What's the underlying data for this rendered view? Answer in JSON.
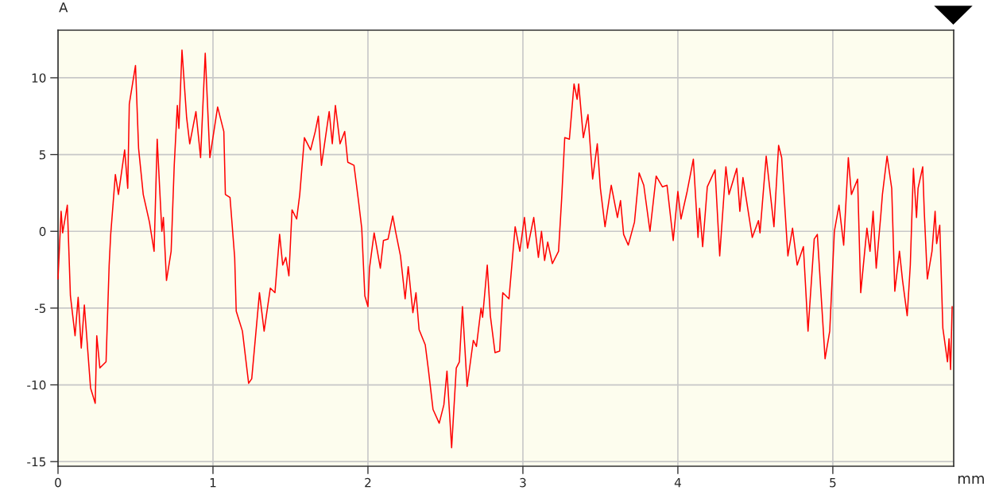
{
  "chart_data": {
    "type": "line",
    "xlabel": "mm",
    "ylabel": "A",
    "x": [
      0.0,
      0.02,
      0.03,
      0.06,
      0.08,
      0.11,
      0.13,
      0.15,
      0.17,
      0.21,
      0.24,
      0.25,
      0.27,
      0.31,
      0.33,
      0.34,
      0.37,
      0.39,
      0.43,
      0.45,
      0.46,
      0.5,
      0.52,
      0.55,
      0.59,
      0.62,
      0.64,
      0.67,
      0.68,
      0.7,
      0.73,
      0.75,
      0.77,
      0.78,
      0.8,
      0.83,
      0.85,
      0.89,
      0.92,
      0.95,
      0.98,
      1.03,
      1.07,
      1.08,
      1.11,
      1.14,
      1.15,
      1.19,
      1.23,
      1.25,
      1.3,
      1.33,
      1.37,
      1.4,
      1.43,
      1.45,
      1.47,
      1.49,
      1.51,
      1.54,
      1.56,
      1.59,
      1.63,
      1.66,
      1.68,
      1.7,
      1.75,
      1.77,
      1.79,
      1.82,
      1.85,
      1.87,
      1.91,
      1.94,
      1.96,
      1.98,
      2.0,
      2.01,
      2.04,
      2.08,
      2.1,
      2.13,
      2.16,
      2.18,
      2.21,
      2.24,
      2.26,
      2.29,
      2.31,
      2.33,
      2.37,
      2.39,
      2.42,
      2.46,
      2.49,
      2.51,
      2.54,
      2.57,
      2.59,
      2.61,
      2.64,
      2.68,
      2.7,
      2.73,
      2.74,
      2.77,
      2.79,
      2.82,
      2.85,
      2.87,
      2.91,
      2.95,
      2.98,
      3.01,
      3.03,
      3.07,
      3.1,
      3.12,
      3.14,
      3.16,
      3.19,
      3.23,
      3.25,
      3.27,
      3.3,
      3.33,
      3.35,
      3.36,
      3.39,
      3.42,
      3.45,
      3.48,
      3.5,
      3.53,
      3.57,
      3.61,
      3.63,
      3.65,
      3.68,
      3.72,
      3.75,
      3.78,
      3.82,
      3.86,
      3.9,
      3.93,
      3.97,
      4.0,
      4.02,
      4.06,
      4.1,
      4.13,
      4.14,
      4.16,
      4.19,
      4.24,
      4.27,
      4.31,
      4.33,
      4.38,
      4.4,
      4.42,
      4.48,
      4.52,
      4.53,
      4.57,
      4.62,
      4.65,
      4.67,
      4.71,
      4.74,
      4.77,
      4.81,
      4.84,
      4.88,
      4.9,
      4.95,
      4.98,
      5.01,
      5.04,
      5.07,
      5.1,
      5.12,
      5.16,
      5.18,
      5.22,
      5.24,
      5.26,
      5.28,
      5.31,
      5.32,
      5.35,
      5.38,
      5.4,
      5.43,
      5.45,
      5.48,
      5.5,
      5.52,
      5.54,
      5.55,
      5.58,
      5.59,
      5.61,
      5.64,
      5.66,
      5.67,
      5.69,
      5.71,
      5.74,
      5.75,
      5.76,
      5.77
    ],
    "series": [
      {
        "color": "#ff0000",
        "values": [
          -3.1,
          1.3,
          -0.1,
          1.7,
          -4.2,
          -6.8,
          -4.3,
          -7.6,
          -4.8,
          -10.2,
          -11.2,
          -6.8,
          -8.9,
          -8.5,
          -2.2,
          -0.2,
          3.7,
          2.4,
          5.3,
          2.8,
          8.3,
          10.8,
          5.4,
          2.4,
          0.6,
          -1.3,
          6.0,
          0.0,
          0.9,
          -3.2,
          -1.3,
          4.3,
          8.2,
          6.7,
          11.8,
          7.4,
          5.7,
          7.8,
          4.8,
          11.6,
          4.8,
          8.1,
          6.5,
          2.4,
          2.2,
          -1.7,
          -5.2,
          -6.5,
          -9.9,
          -9.6,
          -4.0,
          -6.5,
          -3.7,
          -4.0,
          -0.2,
          -2.2,
          -1.7,
          -2.9,
          1.4,
          0.8,
          2.4,
          6.1,
          5.3,
          6.5,
          7.5,
          4.3,
          7.8,
          5.7,
          8.2,
          5.7,
          6.5,
          4.5,
          4.3,
          1.9,
          0.2,
          -4.2,
          -4.9,
          -2.4,
          -0.1,
          -2.4,
          -0.6,
          -0.5,
          1.0,
          -0.1,
          -1.6,
          -4.4,
          -2.3,
          -5.3,
          -4.0,
          -6.4,
          -7.4,
          -9.0,
          -11.6,
          -12.5,
          -11.3,
          -9.1,
          -14.1,
          -8.9,
          -8.5,
          -4.9,
          -10.1,
          -7.1,
          -7.5,
          -5.0,
          -5.6,
          -2.2,
          -5.5,
          -7.9,
          -7.8,
          -4.0,
          -4.4,
          0.3,
          -1.3,
          0.9,
          -1.1,
          0.9,
          -1.7,
          0.0,
          -1.9,
          -0.7,
          -2.1,
          -1.3,
          2.1,
          6.1,
          6.0,
          9.6,
          8.6,
          9.6,
          6.1,
          7.6,
          3.4,
          5.7,
          2.8,
          0.3,
          3.0,
          0.9,
          2.0,
          -0.2,
          -0.9,
          0.6,
          3.8,
          3.0,
          0.0,
          3.6,
          2.9,
          3.0,
          -0.6,
          2.6,
          0.8,
          2.6,
          4.7,
          -0.4,
          1.5,
          -1.0,
          2.9,
          4.0,
          -1.6,
          4.2,
          2.4,
          4.1,
          1.3,
          3.5,
          -0.4,
          0.7,
          -0.1,
          4.9,
          0.3,
          5.6,
          4.8,
          -1.6,
          0.2,
          -2.2,
          -1.0,
          -6.5,
          -0.5,
          -0.2,
          -8.3,
          -6.5,
          0.0,
          1.7,
          -0.9,
          4.8,
          2.4,
          3.4,
          -4.0,
          0.2,
          -1.3,
          1.3,
          -2.4,
          1.1,
          2.4,
          4.9,
          2.8,
          -3.9,
          -1.3,
          -3.2,
          -5.5,
          -2.2,
          4.1,
          0.9,
          2.8,
          4.2,
          1.3,
          -3.1,
          -1.3,
          1.3,
          -0.8,
          0.4,
          -6.3,
          -8.5,
          -7.0,
          -9.0,
          -4.9
        ]
      }
    ],
    "xlim": [
      0,
      5.78
    ],
    "ylim": [
      -15.3,
      13.1
    ],
    "xticks": [
      0,
      1,
      2,
      3,
      4,
      5
    ],
    "yticks": [
      -15,
      -10,
      -5,
      0,
      5,
      10
    ],
    "grid": true
  }
}
